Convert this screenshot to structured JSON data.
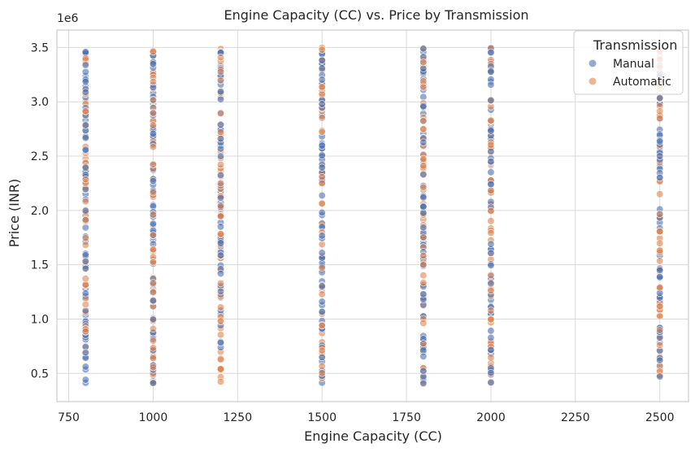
{
  "chart_data": {
    "type": "scatter",
    "title": "Engine Capacity (CC) vs. Price by Transmission",
    "xlabel": "Engine Capacity (CC)",
    "ylabel": "Price (INR)",
    "y_offset_label": "1e6",
    "xlim": [
      715,
      2585
    ],
    "ylim": [
      240000,
      3660000
    ],
    "x_ticks": [
      750,
      1000,
      1250,
      1500,
      1750,
      2000,
      2250,
      2500
    ],
    "x_tick_labels": [
      "750",
      "1000",
      "1250",
      "1500",
      "1750",
      "2000",
      "2250",
      "2500"
    ],
    "y_ticks": [
      500000,
      1000000,
      1500000,
      2000000,
      2500000,
      3000000,
      3500000
    ],
    "y_tick_labels": [
      "0.5",
      "1.0",
      "1.5",
      "2.0",
      "2.5",
      "3.0",
      "3.5"
    ],
    "grid": true,
    "legend": {
      "title": "Transmission",
      "placement": "top-right",
      "entries": [
        "Manual",
        "Automatic"
      ]
    },
    "engine_capacities": [
      800,
      1000,
      1200,
      1500,
      1800,
      2000,
      2500
    ],
    "price_range": [
      400000,
      3500000
    ],
    "series": [
      {
        "name": "Manual",
        "color": "#4C72B0"
      },
      {
        "name": "Automatic",
        "color": "#DD8452"
      }
    ]
  }
}
